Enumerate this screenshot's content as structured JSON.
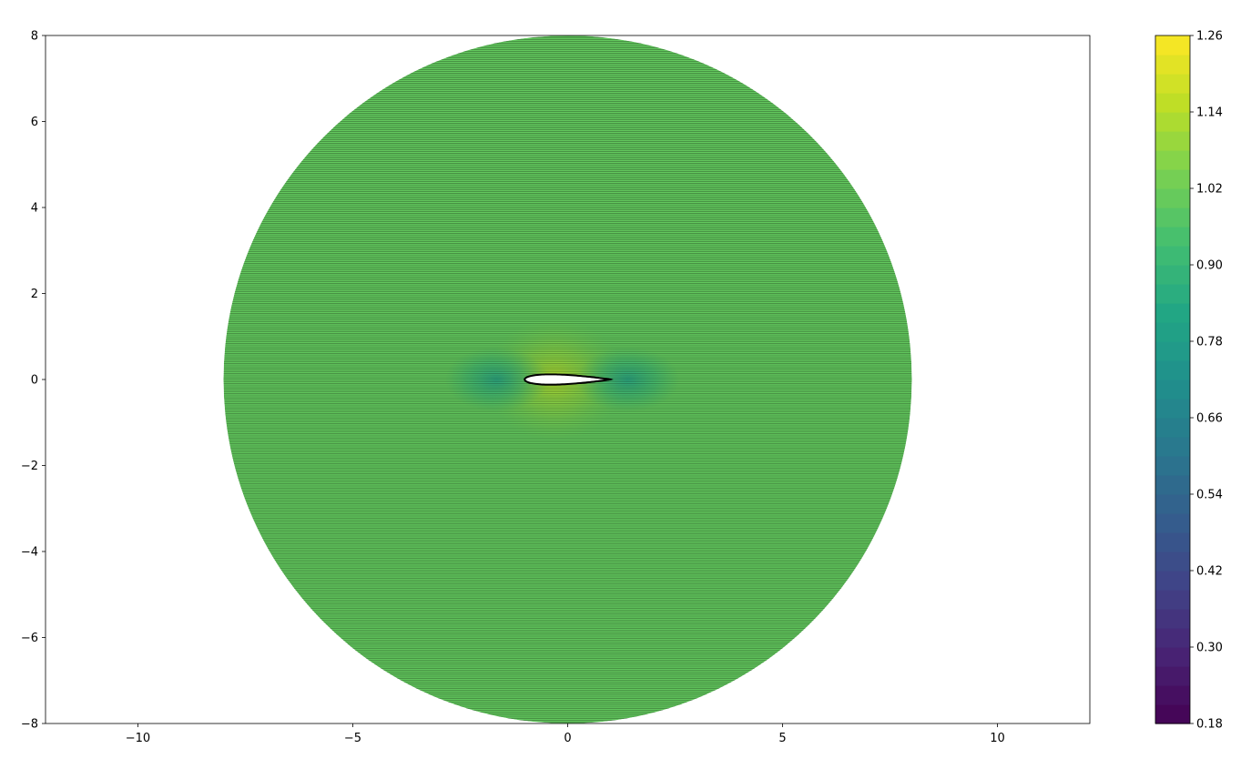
{
  "chart_data": {
    "type": "contour",
    "title": "",
    "xlabel": "",
    "ylabel": "",
    "xlim": [
      -12.15,
      12.15
    ],
    "ylim": [
      -8,
      8
    ],
    "x_ticks": [
      -10,
      -5,
      0,
      5,
      10
    ],
    "x_tick_labels": [
      "−10",
      "−5",
      "0",
      "5",
      "10"
    ],
    "y_ticks": [
      -8,
      -6,
      -4,
      -2,
      0,
      2,
      4,
      6,
      8
    ],
    "y_tick_labels": [
      "−8",
      "−6",
      "−4",
      "−2",
      "0",
      "2",
      "4",
      "6",
      "8"
    ],
    "grid": false,
    "domain": {
      "shape": "circle",
      "center": [
        0,
        0
      ],
      "radius": 8
    },
    "field": {
      "freestream_value": 1.0,
      "stagnation_points": [
        [
          -0.95,
          0
        ],
        [
          1.0,
          0
        ]
      ],
      "max_region_center": [
        -0.3,
        0
      ],
      "description_values": {
        "leading_edge": 0.75,
        "trailing_edge": 0.8,
        "suction_peak": 1.2
      }
    },
    "airfoil": {
      "chord_start": -1,
      "chord_end": 1,
      "max_thickness": 0.12,
      "outline_color": "#000000"
    },
    "colorbar": {
      "colormap": "viridis",
      "min": 0.18,
      "max": 1.26,
      "levels": 36,
      "ticks": [
        0.18,
        0.3,
        0.42,
        0.54,
        0.66,
        0.78,
        0.9,
        1.02,
        1.14,
        1.26
      ],
      "tick_labels": [
        "0.18",
        "0.30",
        "0.42",
        "0.54",
        "0.66",
        "0.78",
        "0.90",
        "1.02",
        "1.14",
        "1.26"
      ]
    },
    "contour_line_color": "#000000"
  }
}
